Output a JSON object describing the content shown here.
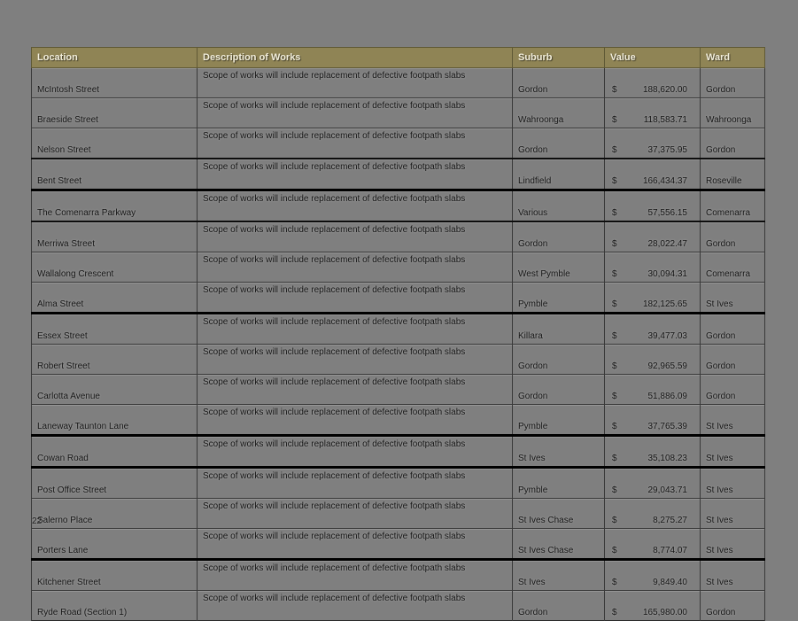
{
  "page": {
    "number": "22"
  },
  "colors": {
    "background": "#7f7f7f",
    "header_bg": "#8f8455",
    "header_text": "#f2eedc",
    "body_text": "#141414",
    "grid_line": "#2a2a2a"
  },
  "table": {
    "columns": [
      "Location",
      "Description of Works",
      "Suburb",
      "Value",
      "Ward"
    ],
    "description_text": "Scope of works will include replacement of defective footpath slabs",
    "currency_symbol": "$",
    "rows": [
      {
        "location": "McIntosh Street",
        "suburb": "Gordon",
        "value": "188,620.00",
        "ward": "Gordon",
        "sep": "thin"
      },
      {
        "location": "Braeside Street",
        "suburb": "Wahroonga",
        "value": "118,583.71",
        "ward": "Wahroonga",
        "sep": "thin"
      },
      {
        "location": "Nelson Street",
        "suburb": "Gordon",
        "value": "37,375.95",
        "ward": "Gordon",
        "sep": "medium"
      },
      {
        "location": "Bent Street",
        "suburb": "Lindfield",
        "value": "166,434.37",
        "ward": "Roseville",
        "sep": "thick"
      },
      {
        "location": "The Comenarra Parkway",
        "suburb": "Various",
        "value": "57,556.15",
        "ward": "Comenarra",
        "sep": "medium"
      },
      {
        "location": "Merriwa Street",
        "suburb": "Gordon",
        "value": "28,022.47",
        "ward": "Gordon",
        "sep": "thin"
      },
      {
        "location": "Wallalong Crescent",
        "suburb": "West Pymble",
        "value": "30,094.31",
        "ward": "Comenarra",
        "sep": "thin"
      },
      {
        "location": "Alma Street",
        "suburb": "Pymble",
        "value": "182,125.65",
        "ward": "St Ives",
        "sep": "thick"
      },
      {
        "location": "Essex Street",
        "suburb": "Killara",
        "value": "39,477.03",
        "ward": "Gordon",
        "sep": "thin"
      },
      {
        "location": "Robert Street",
        "suburb": "Gordon",
        "value": "92,965.59",
        "ward": "Gordon",
        "sep": "thin"
      },
      {
        "location": "Carlotta Avenue",
        "suburb": "Gordon",
        "value": "51,886.09",
        "ward": "Gordon",
        "sep": "thin"
      },
      {
        "location": "Laneway Taunton Lane",
        "suburb": "Pymble",
        "value": "37,765.39",
        "ward": "St Ives",
        "sep": "thick"
      },
      {
        "location": "Cowan Road",
        "suburb": "St Ives",
        "value": "35,108.23",
        "ward": "St Ives",
        "sep": "thick"
      },
      {
        "location": "Post Office Street",
        "suburb": "Pymble",
        "value": "29,043.71",
        "ward": "St Ives",
        "sep": "thin"
      },
      {
        "location": "Salerno Place",
        "suburb": "St Ives Chase",
        "value": "8,275.27",
        "ward": "St Ives",
        "sep": "thin"
      },
      {
        "location": "Porters Lane",
        "suburb": "St Ives Chase",
        "value": "8,774.07",
        "ward": "St Ives",
        "sep": "thick"
      },
      {
        "location": "Kitchener Street",
        "suburb": "St Ives",
        "value": "9,849.40",
        "ward": "St Ives",
        "sep": "thin"
      },
      {
        "location": "Ryde Road (Section 1)",
        "suburb": "Gordon",
        "value": "165,980.00",
        "ward": "Gordon",
        "sep": "thin"
      }
    ]
  }
}
